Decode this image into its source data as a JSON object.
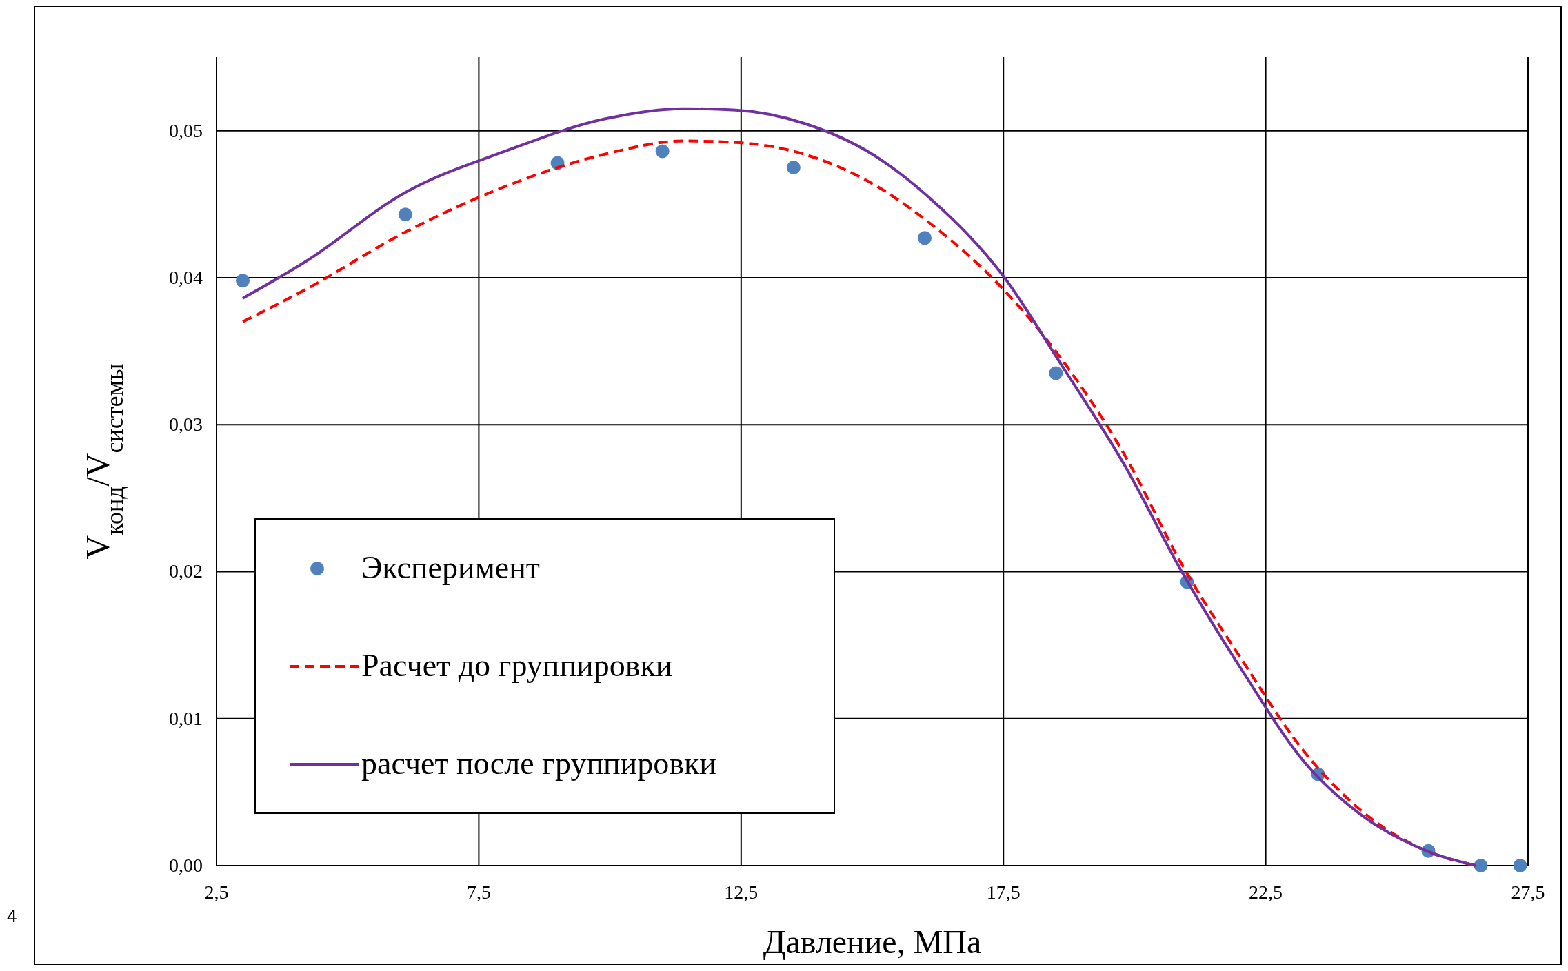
{
  "chart_data": {
    "type": "line",
    "xlabel": "Давление, МПа",
    "ylabel": "V$_{конд}$/V$_{системы}$",
    "xlim": [
      2.5,
      27.5
    ],
    "ylim": [
      0,
      0.055
    ],
    "xticks": [
      {
        "value": 2.5,
        "label": "2,5"
      },
      {
        "value": 7.5,
        "label": "7,5"
      },
      {
        "value": 12.5,
        "label": "12,5"
      },
      {
        "value": 17.5,
        "label": "17,5"
      },
      {
        "value": 22.5,
        "label": "22,5"
      },
      {
        "value": 27.5,
        "label": "27,5"
      }
    ],
    "yticks": [
      {
        "value": 0,
        "label": "0,00"
      },
      {
        "value": 0.01,
        "label": "0,01"
      },
      {
        "value": 0.02,
        "label": "0,02"
      },
      {
        "value": 0.03,
        "label": "0,03"
      },
      {
        "value": 0.04,
        "label": "0,04"
      },
      {
        "value": 0.05,
        "label": "0,05"
      }
    ],
    "grid": true,
    "legend": "bottom left",
    "annotations": [
      "4"
    ],
    "series": [
      {
        "name": "Эксперимент",
        "type": "scatter",
        "marker": "circle",
        "color": "#4f81bd",
        "x": [
          3.0,
          6.1,
          9.0,
          11.0,
          13.5,
          16.0,
          18.5,
          21.0,
          23.5,
          25.6,
          26.6,
          27.35
        ],
        "values": [
          0.0398,
          0.0443,
          0.0478,
          0.0486,
          0.0475,
          0.0427,
          0.0335,
          0.0193,
          0.0062,
          0.001,
          0.0,
          0.0
        ]
      },
      {
        "name": "Расчет до группировки",
        "line_style": "dashed",
        "color": "#ff0000",
        "x": [
          3.0,
          4.2,
          6.1,
          8.0,
          9.9,
          11.4,
          12.4,
          13.7,
          15.0,
          16.1,
          17.5,
          18.6,
          19.8,
          20.9,
          22.1,
          23.2,
          24.3,
          25.5,
          26.5
        ],
        "values": [
          0.037,
          0.0392,
          0.0431,
          0.0462,
          0.0484,
          0.0493,
          0.0492,
          0.0484,
          0.0464,
          0.0437,
          0.0392,
          0.0345,
          0.028,
          0.0205,
          0.0137,
          0.0079,
          0.0038,
          0.0011,
          0.0
        ]
      },
      {
        "name": "расчет после группировки",
        "line_style": "solid",
        "color": "#7030a0",
        "x": [
          3.0,
          4.2,
          6.1,
          8.0,
          9.9,
          11.4,
          12.4,
          13.7,
          15.0,
          16.1,
          17.5,
          18.6,
          19.8,
          20.9,
          22.1,
          23.2,
          24.3,
          25.5,
          26.5
        ],
        "values": [
          0.0386,
          0.0411,
          0.0458,
          0.0486,
          0.0508,
          0.0515,
          0.0514,
          0.0505,
          0.0484,
          0.0454,
          0.0401,
          0.0341,
          0.0273,
          0.02,
          0.013,
          0.0072,
          0.0035,
          0.0011,
          0.0
        ]
      }
    ]
  }
}
